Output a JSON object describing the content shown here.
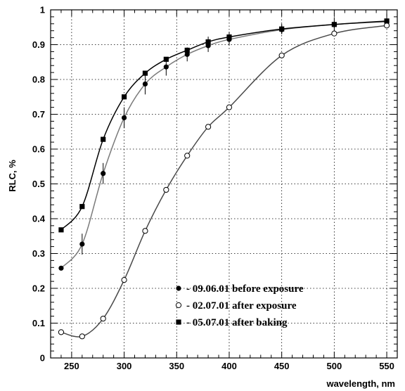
{
  "chart_data": {
    "type": "line",
    "title": "",
    "xlabel": "wavelength, nm",
    "ylabel": "RLC, %",
    "xlim": [
      230,
      560
    ],
    "ylim": [
      0,
      1
    ],
    "xticks": [
      250,
      300,
      350,
      400,
      450,
      500,
      550
    ],
    "yticks": [
      0,
      0.1,
      0.2,
      0.3,
      0.4,
      0.5,
      0.6,
      0.7,
      0.8,
      0.9,
      1
    ],
    "grid": true,
    "legend_position": "bottom-center",
    "series": [
      {
        "name": "- 09.06.01 before exposure",
        "marker": "filled-circle",
        "color": "#7a7a7a",
        "x": [
          240,
          260,
          280,
          300,
          320,
          340,
          360,
          380,
          400,
          450,
          500,
          550
        ],
        "y": [
          0.258,
          0.327,
          0.53,
          0.69,
          0.787,
          0.836,
          0.872,
          0.897,
          0.915,
          0.943,
          0.958,
          0.966
        ],
        "err": [
          0,
          0.03,
          0.03,
          0.03,
          0.03,
          0.025,
          0.02,
          0.018,
          0.015,
          0.012,
          0.01,
          0.01
        ]
      },
      {
        "name": "- 02.07.01 after exposure",
        "marker": "open-circle",
        "color": "#4a4a4a",
        "x": [
          240,
          260,
          280,
          300,
          320,
          340,
          360,
          380,
          400,
          450,
          500,
          550
        ],
        "y": [
          0.074,
          0.062,
          0.113,
          0.224,
          0.365,
          0.483,
          0.581,
          0.664,
          0.72,
          0.869,
          0.932,
          0.955
        ],
        "err": [
          0,
          0,
          0,
          0,
          0,
          0,
          0,
          0,
          0,
          0,
          0,
          0
        ]
      },
      {
        "name": "- 05.07.01 after baking",
        "marker": "filled-square",
        "color": "#000000",
        "x": [
          240,
          260,
          280,
          300,
          320,
          340,
          360,
          380,
          400,
          450,
          500,
          550
        ],
        "y": [
          0.368,
          0.435,
          0.628,
          0.75,
          0.818,
          0.858,
          0.884,
          0.908,
          0.922,
          0.945,
          0.958,
          0.968
        ],
        "err": [
          0,
          0,
          0,
          0,
          0,
          0,
          0,
          0.015,
          0.015,
          0.015,
          0.02,
          0.02
        ]
      }
    ]
  }
}
